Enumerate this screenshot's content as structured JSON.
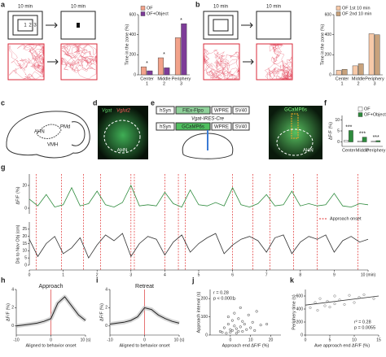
{
  "panel_labels": [
    "a",
    "b",
    "c",
    "d",
    "e",
    "f",
    "g",
    "h",
    "i",
    "j",
    "k"
  ],
  "arena_a": {
    "durations": [
      "10 min",
      "10 min"
    ],
    "zones": [
      "1",
      "2",
      "3"
    ]
  },
  "arena_b": {
    "durations": [
      "10 min",
      "10 min"
    ]
  },
  "brain": {
    "labels": [
      "AHN",
      "PMd",
      "VMH"
    ]
  },
  "histology_d": {
    "markers": [
      "Vgat",
      "Vglut2"
    ],
    "region": "AHN"
  },
  "construct_e": {
    "row1": [
      "hSyn",
      "FlEx-Flpo",
      "WPRE",
      "SV40"
    ],
    "cre": "Vgat-IRES-Cre",
    "row2": [
      "hSyn",
      "GCaMP6s",
      "WPRE",
      "SV40"
    ]
  },
  "histology_e": {
    "marker": "GCaMP6s",
    "region": "AHN"
  },
  "chart_data": [
    {
      "type": "bar",
      "ylabel": "Time in the zone (%)",
      "categories": [
        "Center",
        "Middle",
        "Periphery"
      ],
      "category_numbers": [
        "1",
        "2",
        "3"
      ],
      "series": [
        {
          "name": "OF",
          "color": "#f2a28a",
          "values": [
            80,
            170,
            370
          ]
        },
        {
          "name": "OF+Object",
          "color": "#7d3c98",
          "values": [
            40,
            70,
            510
          ]
        }
      ],
      "ylim": [
        0,
        600
      ],
      "yticks": [
        0,
        200,
        400,
        600
      ],
      "annotations": [
        "*",
        "*",
        "*"
      ],
      "legend": "upper left"
    },
    {
      "type": "bar",
      "ylabel": "Time in the zone (%)",
      "categories": [
        "Center",
        "Middle",
        "Periphery"
      ],
      "category_numbers": [
        "1",
        "2",
        "3"
      ],
      "series": [
        {
          "name": "OF 1st 10 min",
          "color": "#f7c9a8",
          "values": [
            45,
            90,
            410
          ]
        },
        {
          "name": "OF 2nd 10 min",
          "color": "#c8a27c",
          "values": [
            55,
            110,
            400
          ]
        }
      ],
      "ylim": [
        0,
        600
      ],
      "yticks": [
        0,
        200,
        400,
        600
      ],
      "legend": "upper left"
    },
    {
      "type": "bar",
      "ylabel": "ΔF/F (%)",
      "categories": [
        "Center",
        "Middle",
        "Periphery"
      ],
      "series": [
        {
          "name": "OF",
          "color": "#ffffff",
          "values": [
            0.8,
            0.5,
            0.3
          ]
        },
        {
          "name": "OF+Object",
          "color": "#2e8b3d",
          "values": [
            5.2,
            2.2,
            0.6
          ]
        }
      ],
      "ylim": [
        -2,
        12
      ],
      "yticks": [
        0,
        5,
        10
      ],
      "annotations": [
        "***",
        "***",
        "***"
      ],
      "legend": "upper right"
    },
    {
      "type": "trace",
      "ylabel": "ΔF/F (%)",
      "y2label": "Dis to Nov Obj (cm)",
      "x": [
        0,
        0.25,
        0.5,
        0.75,
        1,
        1.25,
        1.5,
        1.75,
        2,
        2.25,
        2.5,
        2.75,
        3,
        3.25,
        3.5,
        3.75,
        4,
        4.25,
        4.5,
        4.75,
        5,
        5.25,
        5.5,
        5.75,
        6,
        6.25,
        6.5,
        6.75,
        7,
        7.25,
        7.5,
        7.75,
        8,
        8.25,
        8.5,
        8.75,
        9,
        9.25,
        9.5,
        9.75,
        10
      ],
      "series": [
        {
          "color": "#2e8b3d",
          "values": [
            8,
            2,
            12,
            1,
            3,
            18,
            2,
            4,
            15,
            3,
            1,
            5,
            20,
            2,
            3,
            2,
            14,
            4,
            1,
            16,
            3,
            2,
            5,
            2,
            18,
            3,
            1,
            4,
            12,
            2,
            3,
            15,
            2,
            4,
            2,
            3,
            13,
            2,
            1,
            4,
            3
          ]
        },
        {
          "color": "#333333",
          "axis": "y2",
          "values": [
            18,
            6,
            15,
            20,
            8,
            12,
            19,
            5,
            14,
            21,
            17,
            22,
            6,
            15,
            20,
            18,
            7,
            16,
            21,
            9,
            15,
            19,
            22,
            8,
            14,
            18,
            20,
            17,
            9,
            19,
            21,
            8,
            16,
            20,
            18,
            21,
            9,
            17,
            20,
            16,
            18
          ]
        }
      ],
      "xlim": [
        0,
        10
      ],
      "xticks": [
        0,
        1,
        2,
        3,
        4,
        5,
        6,
        7,
        8,
        9,
        {
          "value": 10,
          "label": "10 (min)"
        }
      ],
      "ylim": [
        -5,
        30
      ],
      "yticks": [
        0,
        20
      ],
      "y2lim": [
        0,
        30
      ],
      "y2ticks": [
        0,
        5,
        10,
        15,
        20,
        25
      ],
      "onsets": [
        0.2,
        0.95,
        1.6,
        2.1,
        3.0,
        3.1,
        4.0,
        4.4,
        4.6,
        6.0,
        6.6,
        7.1,
        7.8,
        8.5,
        9.7
      ],
      "onset_label": "Approach onset"
    },
    {
      "type": "line",
      "title": "Approach",
      "xlabel": "Aligned to behavior onset",
      "ylabel": "ΔF/F (%)",
      "x": [
        -10,
        -8,
        -6,
        -4,
        -2,
        0,
        2,
        4,
        6,
        8,
        10
      ],
      "values": [
        0,
        0.1,
        0.2,
        0.3,
        0.5,
        0.8,
        2.5,
        3.2,
        2.2,
        1.2,
        0.6
      ],
      "xlim": [
        -10,
        10
      ],
      "xticks": [
        -10,
        0,
        {
          "value": 10,
          "label": "10 (s)"
        }
      ],
      "ylim": [
        -1,
        4
      ],
      "yticks": [
        0,
        2,
        4
      ],
      "color": "#222222"
    },
    {
      "type": "line",
      "title": "Retreat",
      "xlabel": "Aligned to behavior onset",
      "ylabel": "ΔF/F (%)",
      "x": [
        -10,
        -8,
        -6,
        -4,
        -2,
        0,
        2,
        4,
        6,
        8,
        10
      ],
      "values": [
        0.2,
        0.3,
        0.4,
        0.6,
        1.0,
        2.0,
        1.8,
        1.2,
        0.8,
        0.5,
        0.3
      ],
      "xlim": [
        -10,
        10
      ],
      "xticks": [
        -10,
        0,
        {
          "value": 10,
          "label": "10 (s)"
        }
      ],
      "ylim": [
        -1,
        4
      ],
      "yticks": [
        0,
        2,
        4
      ],
      "color": "#222222"
    },
    {
      "type": "scatter",
      "xlabel": "Approach end ΔF/F (%)",
      "ylabel": "Approach interval (s)",
      "annotations": [
        "r = 0.28",
        "p < 0.0001"
      ],
      "x": [
        -5,
        -3,
        -2,
        -1,
        0,
        0,
        1,
        1,
        2,
        2,
        3,
        3,
        4,
        5,
        5,
        6,
        7,
        8,
        9,
        10,
        11,
        12,
        13,
        15,
        -4,
        -1,
        2,
        4,
        6,
        18
      ],
      "y": [
        20,
        40,
        10,
        60,
        30,
        15,
        80,
        25,
        50,
        120,
        35,
        10,
        90,
        45,
        150,
        20,
        60,
        30,
        110,
        40,
        70,
        25,
        130,
        55,
        15,
        100,
        200,
        20,
        75,
        60
      ],
      "xlim": [
        -10,
        25
      ],
      "xticks": [
        0,
        10,
        20
      ],
      "ylim": [
        0,
        250
      ],
      "yticks": [
        0,
        100,
        200
      ],
      "color": "#333333"
    },
    {
      "type": "scatter",
      "xlabel": "Ave approach end ΔF/F (%)",
      "ylabel": "Periphery time (s)",
      "annotations": [
        "r² = 0.28",
        "p = 0.0055"
      ],
      "x": [
        1,
        2,
        2.5,
        3,
        4,
        4.5,
        5,
        6,
        6,
        7,
        8,
        9,
        10,
        11,
        12,
        14
      ],
      "y": [
        420,
        500,
        380,
        560,
        450,
        520,
        430,
        480,
        600,
        540,
        470,
        610,
        500,
        580,
        620,
        560
      ],
      "xlim": [
        0,
        15
      ],
      "xticks": [
        0,
        5,
        10,
        15
      ],
      "ylim": [
        0,
        700
      ],
      "yticks": [
        0,
        200,
        400,
        600
      ],
      "color": "#777777",
      "fit_line": {
        "x": [
          0,
          15
        ],
        "y": [
          460,
          600
        ]
      }
    }
  ]
}
